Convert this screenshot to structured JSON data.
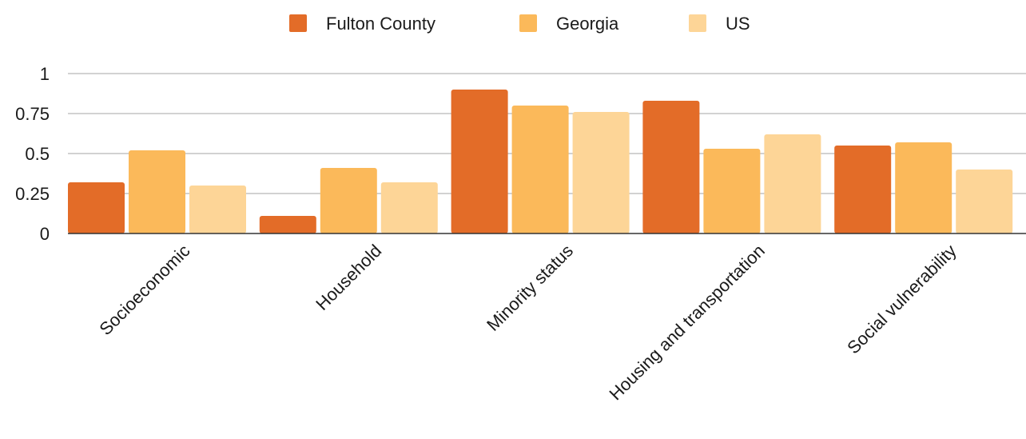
{
  "chart_data": {
    "type": "bar",
    "title": "",
    "xlabel": "",
    "ylabel": "",
    "categories": [
      "Socioeconomic",
      "Household",
      "Minority status",
      "Housing and transportation",
      "Social vulnerability"
    ],
    "series": [
      {
        "name": "Fulton County",
        "color": "#e36c28",
        "values": [
          0.32,
          0.11,
          0.9,
          0.83,
          0.55
        ]
      },
      {
        "name": "Georgia",
        "color": "#fbb95a",
        "values": [
          0.52,
          0.41,
          0.8,
          0.53,
          0.57
        ]
      },
      {
        "name": "US",
        "color": "#fdd597",
        "values": [
          0.3,
          0.32,
          0.76,
          0.62,
          0.4
        ]
      }
    ],
    "ylim": [
      0,
      1
    ],
    "yticks": [
      {
        "value": 0,
        "label": "0"
      },
      {
        "value": 0.25,
        "label": "0.25"
      },
      {
        "value": 0.5,
        "label": "0.5"
      },
      {
        "value": 0.75,
        "label": "0.75"
      },
      {
        "value": 1,
        "label": "1"
      }
    ],
    "grid": true,
    "legend_position": "top-center"
  }
}
